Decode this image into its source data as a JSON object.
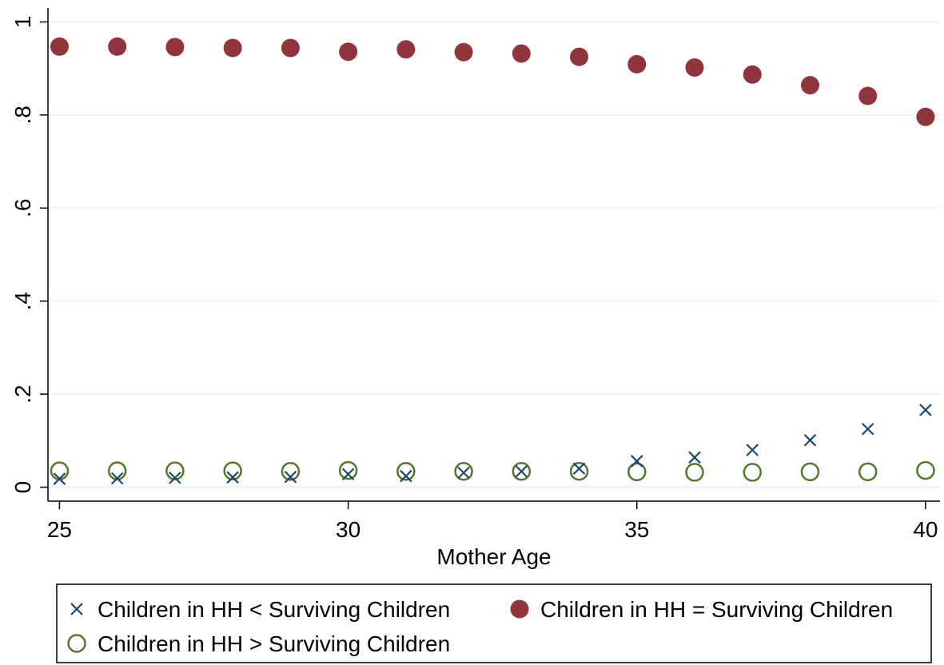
{
  "chart_data": {
    "type": "scatter",
    "title": "",
    "xlabel": "Mother Age",
    "ylabel": "",
    "xlim": [
      24.8,
      40.25
    ],
    "ylim": [
      -0.03,
      1.03
    ],
    "x_ticks": [
      25,
      30,
      35,
      40
    ],
    "x_tick_labels": [
      "25",
      "30",
      "35",
      "40"
    ],
    "y_ticks": [
      0,
      0.2,
      0.4,
      0.6,
      0.8,
      1
    ],
    "y_tick_labels": [
      "0",
      ".2",
      ".4",
      ".6",
      ".8",
      "1"
    ],
    "grid": "horizontal",
    "legend_placement": "bottom",
    "x": [
      25,
      26,
      27,
      28,
      29,
      30,
      31,
      32,
      33,
      34,
      35,
      36,
      37,
      38,
      39,
      40
    ],
    "series": [
      {
        "name": "Children in HH < Surviving Children",
        "marker": "x",
        "color": "#1a476f",
        "values": [
          0.018,
          0.019,
          0.02,
          0.021,
          0.022,
          0.028,
          0.024,
          0.031,
          0.034,
          0.04,
          0.056,
          0.064,
          0.08,
          0.101,
          0.125,
          0.166
        ]
      },
      {
        "name": "Children in HH = Surviving Children",
        "marker": "filled-circle",
        "color": "#90353b",
        "values": [
          0.947,
          0.947,
          0.946,
          0.944,
          0.944,
          0.936,
          0.941,
          0.935,
          0.932,
          0.925,
          0.909,
          0.902,
          0.887,
          0.864,
          0.841,
          0.796
        ]
      },
      {
        "name": "Children in HH > Surviving Children",
        "marker": "hollow-circle",
        "color": "#55752f",
        "values": [
          0.035,
          0.035,
          0.035,
          0.035,
          0.034,
          0.036,
          0.034,
          0.034,
          0.034,
          0.034,
          0.033,
          0.032,
          0.032,
          0.033,
          0.033,
          0.036
        ]
      }
    ]
  },
  "colors": {
    "gridline": "#eaf2f3",
    "axis": "#000000",
    "background": "#ffffff"
  }
}
